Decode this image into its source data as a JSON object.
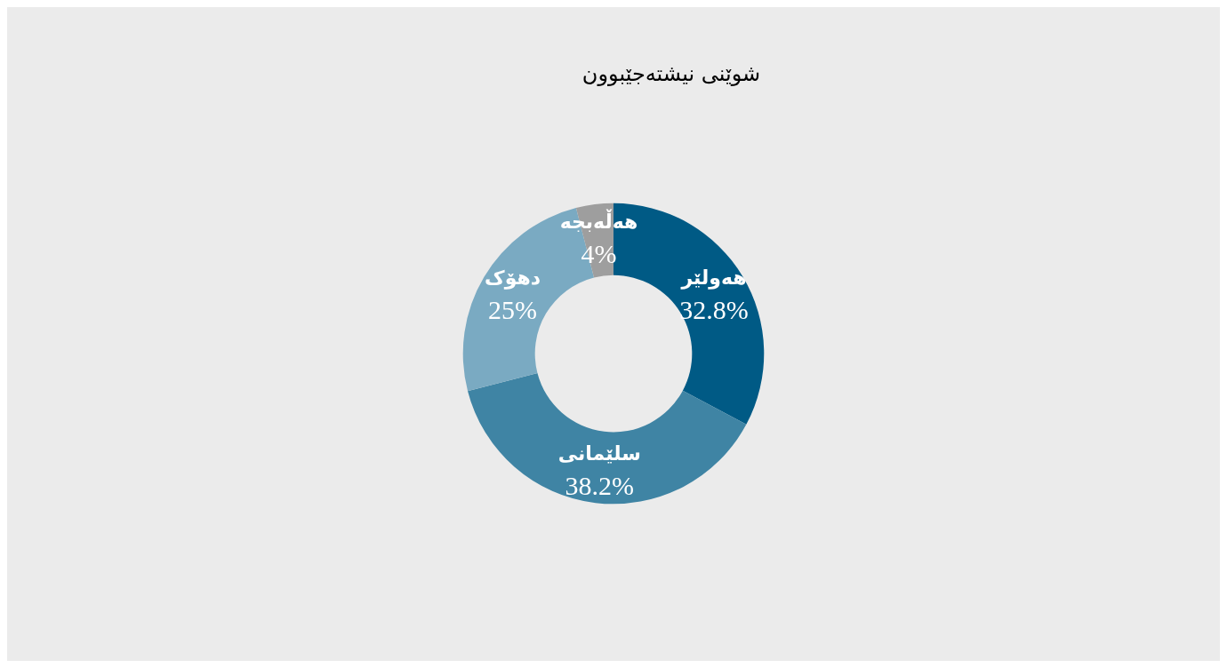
{
  "chart_data": {
    "type": "donut",
    "title": "شوێنی نیشتەجێبوون",
    "categories": [
      "هەولێر",
      "سلێمانی",
      "دهۆک",
      "هەڵەبجە"
    ],
    "values": [
      32.8,
      38.2,
      25,
      4
    ],
    "value_labels": [
      "32.8%",
      "38.2%",
      "25%",
      "4%"
    ],
    "colors": [
      "#005a85",
      "#3f84a4",
      "#7aaac2",
      "#9e9e9e"
    ],
    "legend": false
  }
}
